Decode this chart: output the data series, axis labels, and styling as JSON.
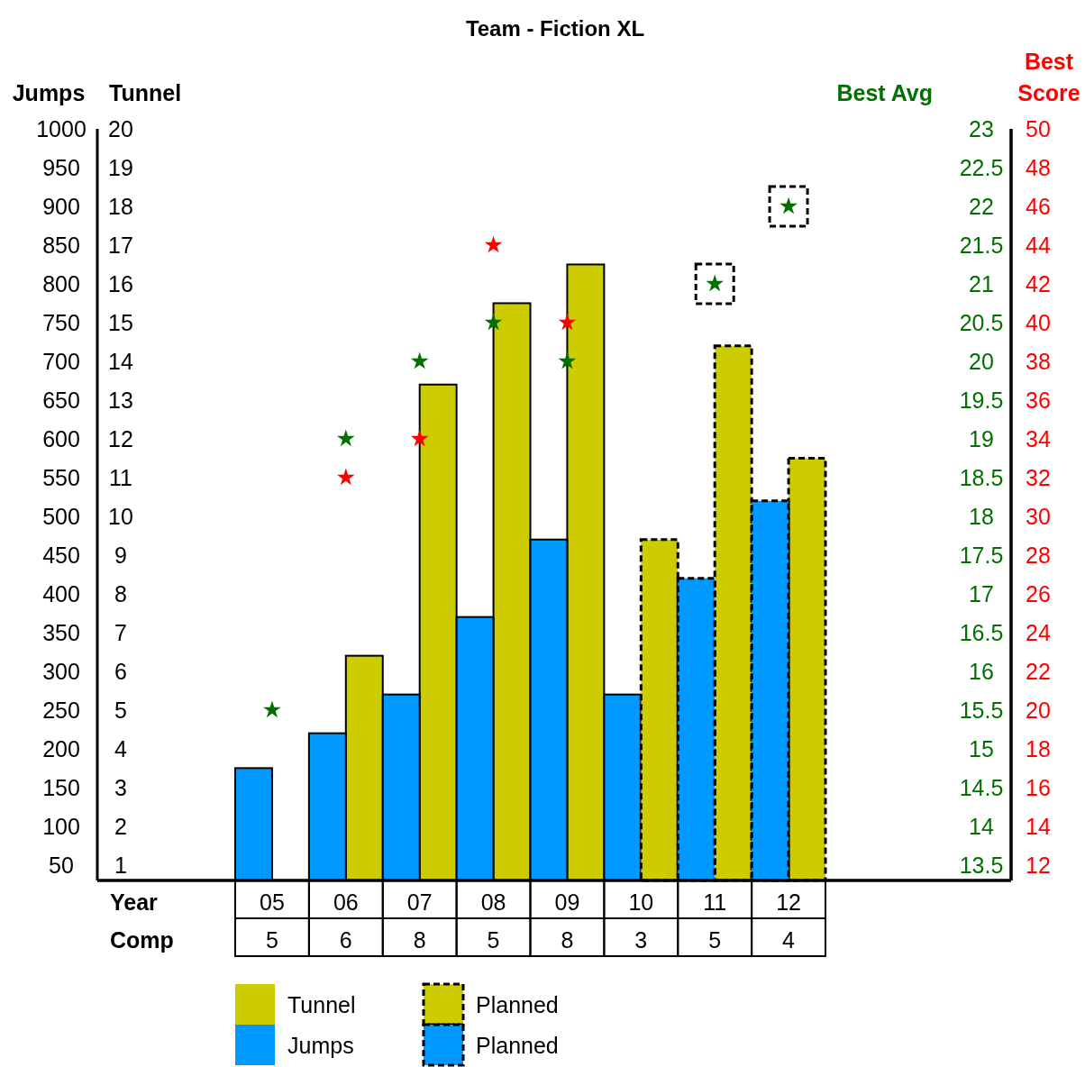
{
  "chart_data": [
    {
      "type": "bar",
      "title": "Team - Fiction XL",
      "xlabel": "Year",
      "ylabel": "Jumps",
      "y2label": "Tunnel",
      "categories": [
        "05",
        "06",
        "07",
        "08",
        "09",
        "10",
        "11",
        "12"
      ],
      "ylim": [
        30,
        1000
      ],
      "yticks": [
        50,
        100,
        150,
        200,
        250,
        300,
        350,
        400,
        450,
        500,
        550,
        600,
        650,
        700,
        750,
        800,
        850,
        900,
        950,
        1000
      ],
      "y2lim": [
        0.6,
        20
      ],
      "y2ticks": [
        1,
        2,
        3,
        4,
        5,
        6,
        7,
        8,
        9,
        10,
        11,
        12,
        13,
        14,
        15,
        16,
        17,
        18,
        19,
        20
      ],
      "series": [
        {
          "name": "Tunnel",
          "axis": "y2",
          "color": "#cccc00",
          "line_style": "solid",
          "values": [
            null,
            6.4,
            13.4,
            15.5,
            16.5,
            null,
            null,
            null
          ]
        },
        {
          "name": "Jumps",
          "color": "#0099ff",
          "line_style": "solid",
          "values": [
            175,
            220,
            270,
            370,
            470,
            270,
            null,
            null
          ]
        },
        {
          "name": "Planned",
          "axis": "y2",
          "color": "#cccc00",
          "line_style": "dashed",
          "values": [
            null,
            null,
            null,
            null,
            null,
            9.4,
            14.4,
            11.5
          ]
        },
        {
          "name": "Planned",
          "color": "#0099ff",
          "line_style": "dashed",
          "values": [
            null,
            null,
            null,
            null,
            null,
            null,
            420,
            520
          ]
        }
      ],
      "legend": "bottom"
    },
    {
      "type": "scatter",
      "xlabel": "Comp",
      "y2label": "Best Avg",
      "y3label": "Best Score",
      "marker": "star",
      "categories": [
        "5",
        "6",
        "8",
        "5",
        "8",
        "3",
        "5",
        "4"
      ],
      "y2lim": [
        13.3,
        23
      ],
      "y2ticks": [
        13.5,
        14,
        14.5,
        15,
        15.5,
        16,
        16.5,
        17,
        17.5,
        18,
        18.5,
        19,
        19.5,
        20,
        20.5,
        21,
        21.5,
        22,
        22.5,
        23
      ],
      "y3lim": [
        11.2,
        50
      ],
      "y3ticks": [
        12,
        14,
        16,
        18,
        20,
        22,
        24,
        26,
        28,
        30,
        32,
        34,
        36,
        38,
        40,
        42,
        44,
        46,
        48,
        50
      ],
      "series": [
        {
          "axis": "y2",
          "color": "#007000",
          "line_style": "solid",
          "values": [
            15.5,
            19,
            20,
            20.5,
            20,
            null,
            null,
            null
          ]
        },
        {
          "axis": "y2",
          "color": "#007000",
          "line_style": "dashed",
          "values": [
            null,
            null,
            null,
            null,
            null,
            null,
            21,
            22
          ]
        },
        {
          "axis": "y3",
          "color": "#ff0000",
          "line_style": "solid",
          "values": [
            null,
            32,
            34,
            44,
            40,
            null,
            null,
            null
          ]
        }
      ]
    }
  ]
}
